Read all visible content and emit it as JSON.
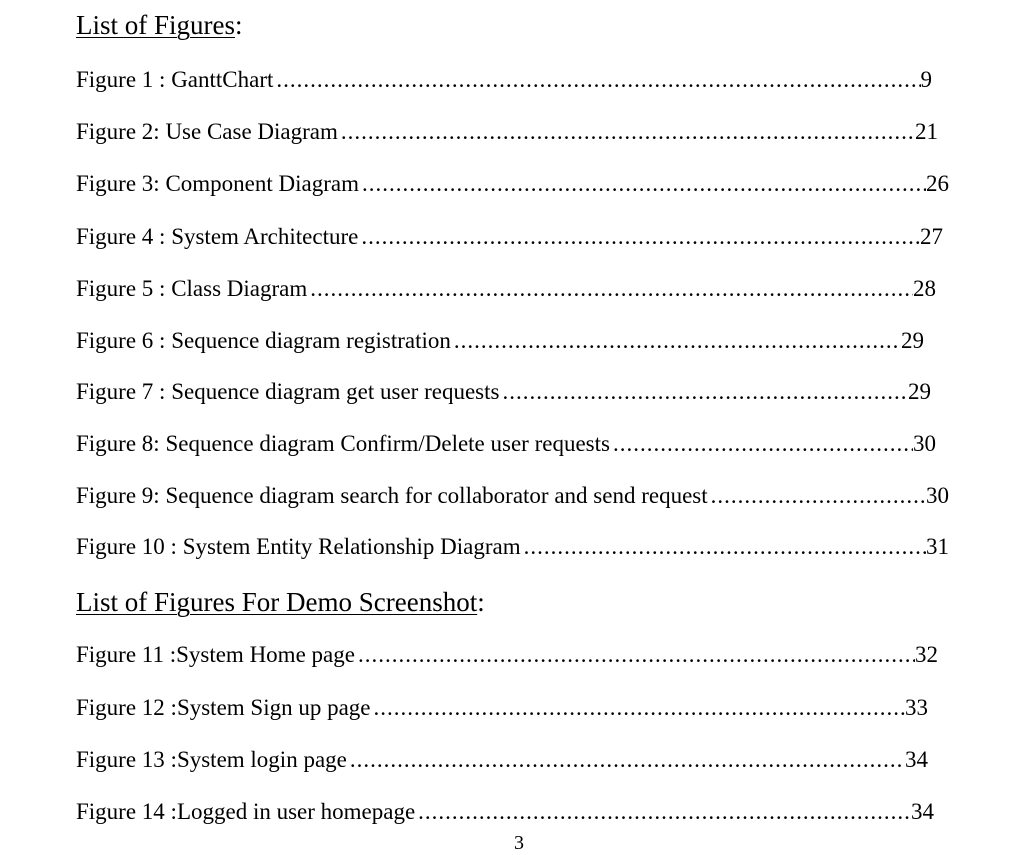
{
  "sections": [
    {
      "title": "List of Figures",
      "items": [
        {
          "label": "Figure 1 : GanttChart",
          "page": "9"
        },
        {
          "label": "Figure 2: Use Case Diagram",
          "page": "21"
        },
        {
          "label": "Figure 3: Component Diagram",
          "page": "26"
        },
        {
          "label": "Figure 4 : System Architecture",
          "page": "27"
        },
        {
          "label": "Figure 5 : Class Diagram",
          "page": "28"
        },
        {
          "label": "Figure 6 : Sequence diagram registration",
          "page": "29"
        },
        {
          "label": "Figure 7 : Sequence diagram get user requests",
          "page": "29"
        },
        {
          "label": "Figure 8: Sequence diagram Confirm/Delete user requests",
          "page": "30"
        },
        {
          "label": "Figure 9: Sequence diagram search for collaborator and send request",
          "page": "30"
        },
        {
          "label": "Figure 10 : System Entity Relationship Diagram",
          "page": "31"
        }
      ]
    },
    {
      "title": "List of Figures For Demo Screenshot",
      "items": [
        {
          "label": "Figure 11 :System Home page",
          "page": "32"
        },
        {
          "label": "Figure 12 :System Sign up page",
          "page": "33"
        },
        {
          "label": "Figure 13 :System login page",
          "page": "34"
        },
        {
          "label": "Figure 14 :Logged in user homepage",
          "page": "34"
        }
      ]
    }
  ],
  "footer": {
    "page_number": "3"
  }
}
